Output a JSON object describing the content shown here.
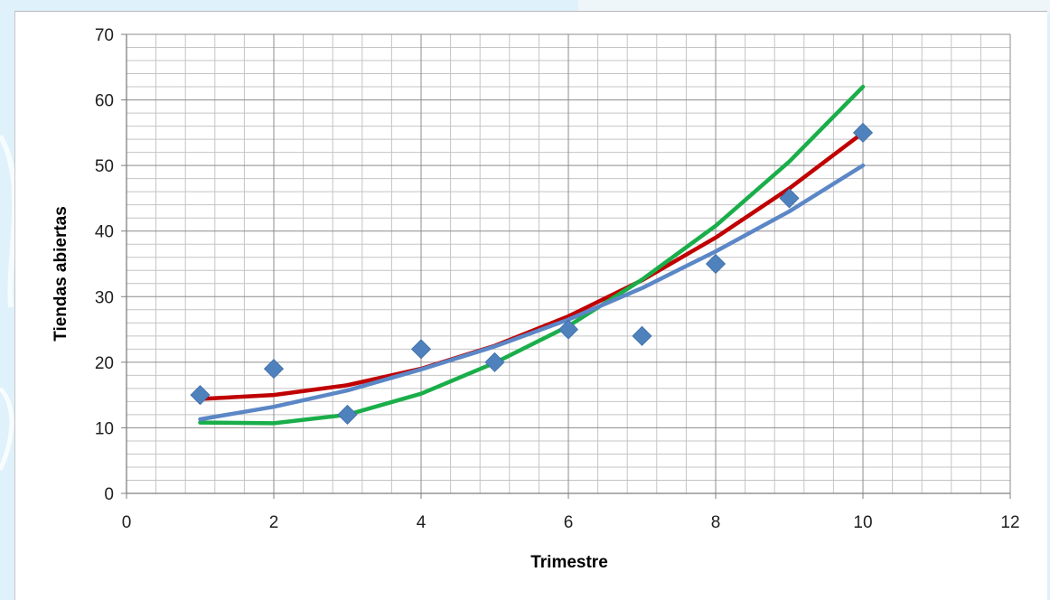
{
  "colors": {
    "slide_background": "#dff1fb",
    "chart_background": "#ffffff",
    "grid_major": "#8c8c8c",
    "grid_minor": "#c4c4c4",
    "observed_marker": "#4f81bd",
    "red_curve": "#c00000",
    "green_curve": "#1aae4a",
    "blue_curve": "#5b87c6"
  },
  "chart_data": {
    "type": "scatter",
    "title": "",
    "xlabel": "Trimestre",
    "ylabel": "Tiendas abiertas",
    "xlim": [
      0,
      12
    ],
    "ylim": [
      0,
      70
    ],
    "x_ticks": [
      "0",
      "2",
      "4",
      "6",
      "8",
      "10",
      "12"
    ],
    "y_ticks": [
      "0",
      "10",
      "20",
      "30",
      "40",
      "50",
      "60",
      "70"
    ],
    "grid": true,
    "minor_grid": true,
    "legend": "none",
    "series": [
      {
        "kind": "scatter",
        "marker": "diamond",
        "color": "#4f81bd",
        "x": [
          1,
          2,
          3,
          4,
          5,
          6,
          7,
          8,
          9,
          10
        ],
        "y": [
          15,
          19,
          12,
          22,
          20,
          25,
          24,
          35,
          45,
          55
        ]
      },
      {
        "kind": "line",
        "color": "#c00000",
        "x": [
          1,
          2,
          3,
          4,
          5,
          6,
          7,
          8,
          9,
          10
        ],
        "y": [
          14.4,
          15,
          16.5,
          19,
          22.5,
          27,
          32.5,
          39,
          46.5,
          55
        ]
      },
      {
        "kind": "line",
        "color": "#1aae4a",
        "x": [
          1,
          2,
          3,
          4,
          5,
          6,
          7,
          8,
          9,
          10
        ],
        "y": [
          10.8,
          10.7,
          12,
          15.2,
          19.9,
          25.5,
          32.6,
          40.8,
          50.6,
          62
        ]
      },
      {
        "kind": "line",
        "color": "#5b87c6",
        "x": [
          1,
          2,
          3,
          4,
          5,
          6,
          7,
          8,
          9,
          10
        ],
        "y": [
          11.3,
          13.2,
          15.7,
          18.9,
          22.4,
          26.5,
          31.3,
          36.9,
          43,
          50
        ]
      }
    ]
  }
}
